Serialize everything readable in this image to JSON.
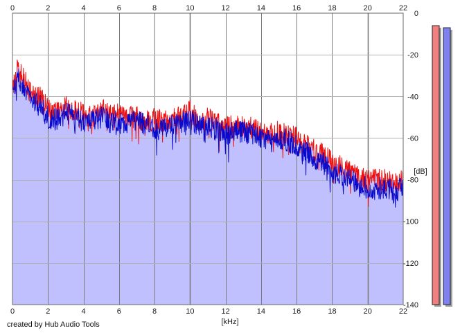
{
  "chart_data": {
    "type": "area",
    "title": "",
    "xlabel": "[kHz]",
    "ylabel": "[dB]",
    "xlim": [
      0,
      22
    ],
    "ylim": [
      -140,
      0
    ],
    "x_ticks": [
      0,
      2,
      4,
      6,
      8,
      10,
      12,
      14,
      16,
      18,
      20,
      22
    ],
    "y_ticks": [
      0,
      -20,
      -40,
      -60,
      -80,
      -100,
      -120,
      -140
    ],
    "y_tick_labels": [
      "0",
      "-20",
      "-40",
      "-60",
      "-80",
      "-100",
      "-120",
      "-140"
    ],
    "grid": true,
    "legend": "none",
    "series": [
      {
        "color": "#ee1111",
        "x": [
          0,
          0.25,
          0.5,
          0.75,
          1,
          1.5,
          2,
          2.5,
          3,
          3.5,
          4,
          4.5,
          5,
          5.5,
          6,
          6.5,
          7,
          7.5,
          8,
          8.5,
          9,
          9.5,
          10,
          10.5,
          11,
          11.5,
          12,
          12.5,
          13,
          13.5,
          14,
          14.5,
          15,
          15.5,
          16,
          16.5,
          17,
          17.5,
          18,
          18.5,
          19,
          19.5,
          20,
          20.5,
          21,
          21.5,
          22
        ],
        "y": [
          -38,
          -28,
          -30,
          -33,
          -38,
          -40,
          -46,
          -48,
          -45,
          -47,
          -48,
          -50,
          -46,
          -49,
          -48,
          -50,
          -50,
          -52,
          -51,
          -52,
          -50,
          -50,
          -47,
          -52,
          -50,
          -53,
          -55,
          -54,
          -54,
          -55,
          -56,
          -58,
          -57,
          -58,
          -60,
          -63,
          -66,
          -68,
          -72,
          -74,
          -76,
          -78,
          -80,
          -80,
          -80,
          -82,
          -80
        ]
      },
      {
        "color": "#0a0acc",
        "x": [
          0,
          0.25,
          0.5,
          0.75,
          1,
          1.5,
          2,
          2.5,
          3,
          3.5,
          4,
          4.5,
          5,
          5.5,
          6,
          6.5,
          7,
          7.5,
          8,
          8.5,
          9,
          9.5,
          10,
          10.5,
          11,
          11.5,
          12,
          12.5,
          13,
          13.5,
          14,
          14.5,
          15,
          15.5,
          16,
          16.5,
          17,
          17.5,
          18,
          18.5,
          19,
          19.5,
          20,
          20.5,
          21,
          21.5,
          22
        ],
        "y": [
          -40,
          -30,
          -33,
          -36,
          -42,
          -44,
          -50,
          -51,
          -48,
          -50,
          -52,
          -52,
          -50,
          -52,
          -52,
          -54,
          -52,
          -54,
          -55,
          -56,
          -54,
          -53,
          -50,
          -54,
          -54,
          -56,
          -58,
          -57,
          -57,
          -58,
          -60,
          -62,
          -60,
          -61,
          -64,
          -67,
          -70,
          -72,
          -76,
          -78,
          -80,
          -82,
          -84,
          -84,
          -84,
          -86,
          -84
        ]
      }
    ],
    "level_meters": [
      {
        "color": "#f08080",
        "level_db": -6
      },
      {
        "color": "#8080f0",
        "level_db": -7
      }
    ]
  },
  "footer": {
    "credit": "created by Hub Audio Tools"
  }
}
